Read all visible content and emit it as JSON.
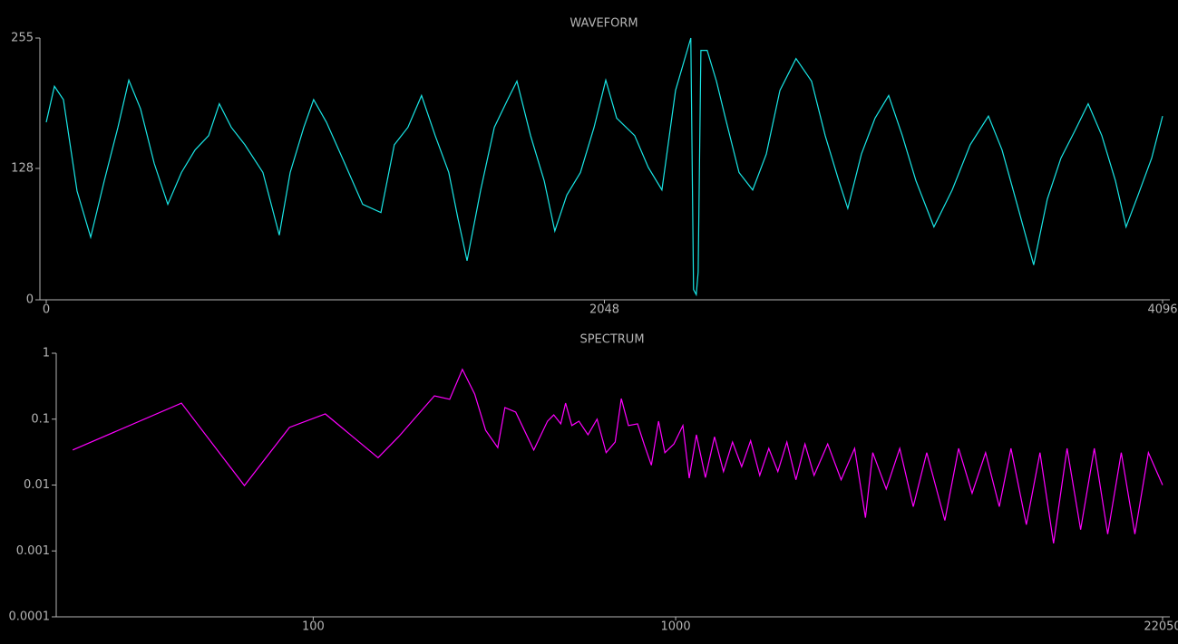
{
  "chart_data": [
    {
      "type": "line",
      "title": "WAVEFORM",
      "color": "#19e6e6",
      "x": [
        0,
        30,
        63,
        113,
        163,
        213,
        263,
        303,
        346,
        396,
        446,
        496,
        546,
        596,
        635,
        679,
        729,
        795,
        855,
        895,
        945,
        981,
        1028,
        1095,
        1161,
        1228,
        1277,
        1327,
        1377,
        1427,
        1477,
        1510,
        1544,
        1594,
        1644,
        1693,
        1727,
        1777,
        1827,
        1866,
        1910,
        1960,
        2010,
        2053,
        2093,
        2159,
        2209,
        2259,
        2309,
        2365,
        2375,
        2385,
        2392,
        2402,
        2425,
        2459,
        2492,
        2542,
        2592,
        2642,
        2692,
        2751,
        2808,
        2858,
        2908,
        2941,
        2991,
        3041,
        3091,
        3141,
        3191,
        3257,
        3324,
        3390,
        3457,
        3507,
        3557,
        3623,
        3673,
        3723,
        3773,
        3823,
        3873,
        3923,
        3962,
        4006,
        4056,
        4096
      ],
      "values": [
        173,
        208,
        195,
        106,
        61,
        116,
        168,
        214,
        186,
        133,
        93,
        124,
        146,
        160,
        191,
        168,
        151,
        124,
        63,
        124,
        168,
        195,
        173,
        133,
        93,
        85,
        151,
        168,
        199,
        160,
        124,
        80,
        38,
        107,
        168,
        195,
        213,
        160,
        116,
        67,
        102,
        124,
        168,
        214,
        177,
        160,
        129,
        107,
        204,
        255,
        10,
        5,
        27,
        243,
        243,
        213,
        177,
        124,
        107,
        142,
        204,
        235,
        213,
        160,
        116,
        89,
        142,
        177,
        199,
        160,
        116,
        71,
        107,
        151,
        179,
        146,
        98,
        34,
        98,
        138,
        164,
        191,
        160,
        116,
        71,
        102,
        138,
        179
      ],
      "xlim": [
        0,
        4096
      ],
      "ylim": [
        0,
        255
      ],
      "xticks": [
        0,
        2048,
        4096
      ],
      "yticks": [
        0,
        128,
        255
      ]
    },
    {
      "type": "line",
      "title": "SPECTRUM",
      "color": "#ff00ff",
      "xlog": true,
      "ylog": true,
      "x": [
        21.7,
        43.3,
        64.6,
        86,
        108,
        151,
        172,
        216,
        238,
        258,
        279,
        299,
        323,
        338,
        362,
        406,
        443,
        461,
        482,
        497,
        517,
        541,
        573,
        607,
        643,
        681,
        708,
        741,
        785,
        818,
        857,
        897,
        934,
        989,
        1047,
        1090,
        1141,
        1208,
        1280,
        1355,
        1435,
        1521,
        1610,
        1706,
        1807,
        1914,
        2027,
        2147,
        2274,
        2409,
        2627,
        2861,
        3117,
        3339,
        3498,
        3811,
        4152,
        4524,
        4929,
        5530,
        6035,
        6575,
        7163,
        7814,
        8417,
        9280,
        10120,
        11030,
        12020,
        13100,
        14290,
        15560,
        16960,
        18490,
        20150,
        22050
      ],
      "values": [
        0.034,
        0.175,
        0.0098,
        0.075,
        0.12,
        0.026,
        0.054,
        0.226,
        0.2,
        0.57,
        0.24,
        0.068,
        0.037,
        0.15,
        0.128,
        0.034,
        0.093,
        0.116,
        0.085,
        0.175,
        0.08,
        0.093,
        0.058,
        0.1,
        0.031,
        0.045,
        0.205,
        0.08,
        0.085,
        0.042,
        0.02,
        0.093,
        0.031,
        0.042,
        0.08,
        0.0127,
        0.058,
        0.013,
        0.054,
        0.016,
        0.045,
        0.019,
        0.047,
        0.014,
        0.036,
        0.016,
        0.045,
        0.012,
        0.042,
        0.014,
        0.042,
        0.012,
        0.036,
        0.0032,
        0.031,
        0.0087,
        0.036,
        0.0047,
        0.031,
        0.0029,
        0.036,
        0.0075,
        0.031,
        0.0047,
        0.036,
        0.0025,
        0.031,
        0.0013,
        0.036,
        0.0021,
        0.036,
        0.0018,
        0.031,
        0.0018,
        0.031,
        0.01
      ],
      "xlim": [
        20,
        22050
      ],
      "ylim": [
        0.0001,
        1
      ],
      "xticks": [
        100,
        1000,
        22050
      ],
      "yticks": [
        0.0001,
        0.001,
        0.01,
        0.1,
        1
      ]
    }
  ]
}
